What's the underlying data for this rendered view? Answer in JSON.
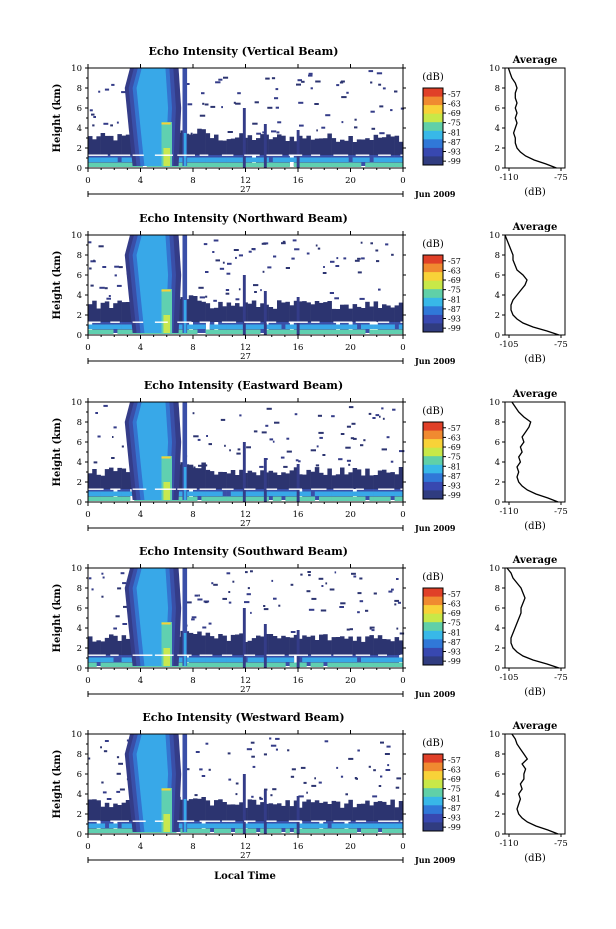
{
  "figure": {
    "x_axis_label": "Local Time",
    "y_axis_label": "Height (km)",
    "colorbar_unit": "(dB)",
    "colorbar_levels": [
      "-57",
      "-63",
      "-69",
      "-75",
      "-81",
      "-87",
      "-93",
      "-99"
    ],
    "colorbar_colors": [
      "#e04028",
      "#f08a30",
      "#f8d238",
      "#c8e848",
      "#60d0a8",
      "#38b8e8",
      "#3078d8",
      "#3848b0",
      "#303c80"
    ],
    "avg_title": "Average",
    "avg_unit": "(dB)",
    "day_label": "27",
    "date_label": "Jun 2009",
    "x_ticks": [
      "0",
      "4",
      "8",
      "12",
      "16",
      "20",
      "0"
    ],
    "y_ticks": [
      "0",
      "2",
      "4",
      "6",
      "8",
      "10"
    ]
  },
  "chart_data": [
    {
      "type": "heatmap",
      "title": "Echo Intensity (Vertical Beam)",
      "xlabel": "",
      "ylabel": "Height (km)",
      "xlim": [
        0,
        24
      ],
      "ylim": [
        0,
        10
      ],
      "colorbar_range_db": [
        -99,
        -57
      ],
      "average_profile": {
        "xlim_db": [
          -110,
          -75
        ],
        "x_ticks": [
          "-110",
          "-75"
        ],
        "height_km": [
          0,
          0.4,
          0.8,
          1.2,
          1.6,
          2.0,
          2.5,
          3.0,
          3.5,
          4.0,
          4.5,
          5.0,
          5.5,
          6.0,
          6.5,
          7.0,
          7.5,
          8.0,
          8.5,
          9.0,
          9.5,
          10.0
        ],
        "db": [
          -80,
          -86,
          -93,
          -98,
          -101,
          -103,
          -104,
          -104,
          -105,
          -104,
          -103,
          -104,
          -103,
          -104,
          -103,
          -104,
          -104,
          -103,
          -104,
          -106,
          -107,
          -108
        ]
      }
    },
    {
      "type": "heatmap",
      "title": "Echo Intensity (Northward Beam)",
      "xlabel": "",
      "ylabel": "Height (km)",
      "xlim": [
        0,
        24
      ],
      "ylim": [
        0,
        10
      ],
      "colorbar_range_db": [
        -99,
        -57
      ],
      "average_profile": {
        "xlim_db": [
          -105,
          -75
        ],
        "x_ticks": [
          "-105",
          "-75"
        ],
        "height_km": [
          0,
          0.4,
          0.8,
          1.2,
          1.6,
          2.0,
          2.5,
          3.0,
          3.5,
          4.0,
          4.5,
          5.0,
          5.5,
          6.0,
          6.5,
          7.0,
          7.5,
          8.0,
          8.5,
          9.0,
          9.5,
          10.0
        ],
        "db": [
          -78,
          -84,
          -91,
          -96,
          -99,
          -101,
          -102,
          -102,
          -101,
          -99,
          -97,
          -95,
          -94,
          -96,
          -99,
          -100,
          -101,
          -101,
          -102,
          -103,
          -104,
          -105
        ]
      }
    },
    {
      "type": "heatmap",
      "title": "Echo Intensity (Eastward Beam)",
      "xlabel": "",
      "ylabel": "Height (km)",
      "xlim": [
        0,
        24
      ],
      "ylim": [
        0,
        10
      ],
      "colorbar_range_db": [
        -99,
        -57
      ],
      "average_profile": {
        "xlim_db": [
          -110,
          -75
        ],
        "x_ticks": [
          "-110",
          "-75"
        ],
        "height_km": [
          0,
          0.4,
          0.8,
          1.2,
          1.6,
          2.0,
          2.5,
          3.0,
          3.5,
          4.0,
          4.5,
          5.0,
          5.5,
          6.0,
          6.5,
          7.0,
          7.5,
          8.0,
          8.5,
          9.0,
          9.5,
          10.0
        ],
        "db": [
          -79,
          -85,
          -92,
          -97,
          -100,
          -102,
          -103,
          -102,
          -103,
          -101,
          -102,
          -100,
          -101,
          -99,
          -100,
          -98,
          -96,
          -95,
          -99,
          -102,
          -104,
          -106
        ]
      }
    },
    {
      "type": "heatmap",
      "title": "Echo Intensity (Southward Beam)",
      "xlabel": "",
      "ylabel": "Height (km)",
      "xlim": [
        0,
        24
      ],
      "ylim": [
        0,
        10
      ],
      "colorbar_range_db": [
        -99,
        -57
      ],
      "average_profile": {
        "xlim_db": [
          -105,
          -75
        ],
        "x_ticks": [
          "-105",
          "-75"
        ],
        "height_km": [
          0,
          0.4,
          0.8,
          1.2,
          1.6,
          2.0,
          2.5,
          3.0,
          3.5,
          4.0,
          4.5,
          5.0,
          5.5,
          6.0,
          6.5,
          7.0,
          7.5,
          8.0,
          8.5,
          9.0,
          9.5,
          10.0
        ],
        "db": [
          -78,
          -84,
          -91,
          -96,
          -99,
          -101,
          -102,
          -102,
          -101,
          -100,
          -99,
          -98,
          -97,
          -97,
          -96,
          -95,
          -96,
          -97,
          -99,
          -101,
          -102,
          -104
        ]
      }
    },
    {
      "type": "heatmap",
      "title": "Echo Intensity (Westward Beam)",
      "xlabel": "Local Time",
      "ylabel": "Height (km)",
      "xlim": [
        0,
        24
      ],
      "ylim": [
        0,
        10
      ],
      "colorbar_range_db": [
        -99,
        -57
      ],
      "average_profile": {
        "xlim_db": [
          -110,
          -75
        ],
        "x_ticks": [
          "-110",
          "-75"
        ],
        "height_km": [
          0,
          0.4,
          0.8,
          1.2,
          1.6,
          2.0,
          2.5,
          3.0,
          3.5,
          4.0,
          4.5,
          5.0,
          5.5,
          6.0,
          6.5,
          7.0,
          7.5,
          8.0,
          8.5,
          9.0,
          9.5,
          10.0
        ],
        "db": [
          -79,
          -85,
          -92,
          -97,
          -100,
          -102,
          -103,
          -102,
          -101,
          -102,
          -100,
          -101,
          -99,
          -99,
          -98,
          -100,
          -97,
          -99,
          -101,
          -103,
          -104,
          -106
        ]
      }
    }
  ]
}
